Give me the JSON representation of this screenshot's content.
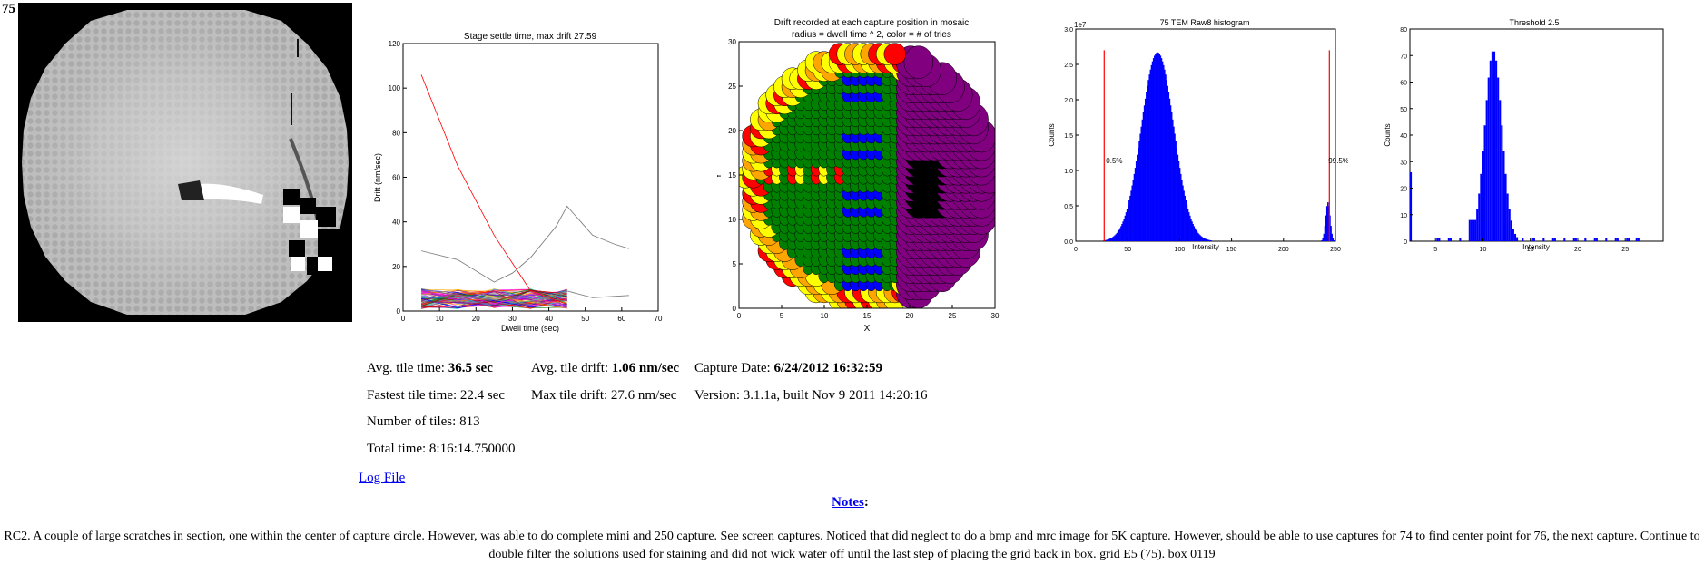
{
  "tile_label": "75",
  "charts": {
    "settle": {
      "title": "Stage settle time, max drift 27.59",
      "xlabel": "Dwell time (sec)",
      "ylabel": "Drift (nm/sec)",
      "xticks": [
        "0",
        "10",
        "20",
        "30",
        "40",
        "50",
        "60",
        "70"
      ],
      "yticks": [
        "0",
        "20",
        "40",
        "60",
        "80",
        "100",
        "120"
      ]
    },
    "mosaic": {
      "title_line1": "Drift recorded at each capture position in mosaic",
      "title_line2": "radius = dwell time ^ 2, color = # of tries",
      "xlabel": "X",
      "ylabel": "Y",
      "xticks": [
        "0",
        "5",
        "10",
        "15",
        "20",
        "25",
        "30"
      ],
      "yticks": [
        "0",
        "5",
        "10",
        "15",
        "20",
        "25",
        "30"
      ]
    },
    "histogram": {
      "title": "75 TEM Raw8 histogram",
      "xlabel": "Intensity",
      "ylabel": "Counts",
      "exponent": "1e7",
      "xticks": [
        "0",
        "50",
        "100",
        "150",
        "200",
        "250"
      ],
      "yticks": [
        "0.0",
        "0.5",
        "1.0",
        "1.5",
        "2.0",
        "2.5",
        "3.0"
      ],
      "low_marker": "0.5%",
      "high_marker": "99.5%"
    },
    "threshold": {
      "title": "Threshold 2.5",
      "xlabel": "Intensity",
      "ylabel": "Counts",
      "xticks": [
        "5",
        "10",
        "15",
        "20",
        "25"
      ],
      "yticks": [
        "0",
        "10",
        "20",
        "30",
        "40",
        "50",
        "60",
        "70",
        "80"
      ]
    }
  },
  "stats": {
    "avg_tile_time_label": "Avg. tile time:",
    "avg_tile_time_value": "36.5 sec",
    "fastest_tile_time": "Fastest tile time: 22.4 sec",
    "number_of_tiles": "Number of tiles: 813",
    "total_time": "Total time: 8:16:14.750000",
    "avg_tile_drift_label": "Avg. tile drift:",
    "avg_tile_drift_value": "1.06 nm/sec",
    "max_tile_drift": "Max tile drift: 27.6 nm/sec",
    "capture_date_label": "Capture Date:",
    "capture_date_value": "6/24/2012 16:32:59",
    "version": "Version: 3.1.1a, built Nov 9 2011 14:20:16"
  },
  "log_file_link": "Log File",
  "notes_link": "Notes",
  "notes_colon": ":",
  "notes_text": "RC2. A couple of large scratches in section, one within the center of capture circle. However, was able to do complete mini and 250 capture. See screen captures. Noticed that did neglect to do a bmp and mrc image for 5K capture. However, should be able to use captures for 74 to find center point for 76, the next capture. Continue to double filter the solutions used for staining and did not wick water off until the last step of placing the grid back in box. grid E5 (75). box 0119"
}
